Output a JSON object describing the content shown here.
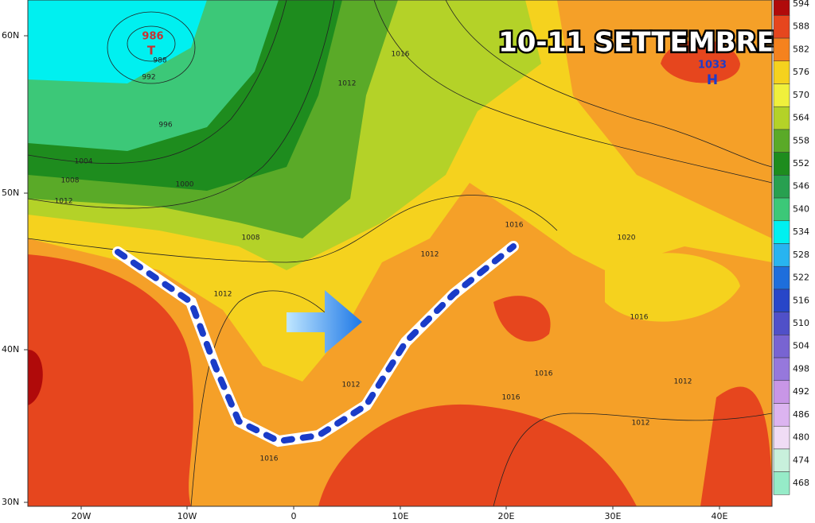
{
  "title": "10-11 SETTEMBRE",
  "legend": [
    {
      "label": 594,
      "color": "#b00a0a"
    },
    {
      "label": 588,
      "color": "#e6461e"
    },
    {
      "label": 582,
      "color": "#f5821e"
    },
    {
      "label": 576,
      "color": "#f5d21e"
    },
    {
      "label": 570,
      "color": "#f0f03c"
    },
    {
      "label": 564,
      "color": "#b4d228"
    },
    {
      "label": 558,
      "color": "#5aaa28"
    },
    {
      "label": 552,
      "color": "#1e8c1e"
    },
    {
      "label": 546,
      "color": "#28a050"
    },
    {
      "label": 540,
      "color": "#3cc878"
    },
    {
      "label": 534,
      "color": "#00f0f0"
    },
    {
      "label": 528,
      "color": "#28b4f0"
    },
    {
      "label": 522,
      "color": "#1e6edc"
    },
    {
      "label": 516,
      "color": "#2846c8"
    },
    {
      "label": 510,
      "color": "#5050c8"
    },
    {
      "label": 504,
      "color": "#7864d2"
    },
    {
      "label": 498,
      "color": "#9678dc"
    },
    {
      "label": 492,
      "color": "#c896e6"
    },
    {
      "label": 486,
      "color": "#dcb4f0"
    },
    {
      "label": 480,
      "color": "#f0dcf5"
    },
    {
      "label": 474,
      "color": "#c8f0dc"
    },
    {
      "label": 468,
      "color": "#96ebc8"
    }
  ],
  "lat_labels": [
    "60N",
    "50N",
    "40N",
    "30N"
  ],
  "lon_labels": [
    "20W",
    "10W",
    "0",
    "10E",
    "20E",
    "30E",
    "40E"
  ],
  "low": {
    "value": "986",
    "symbol": "T"
  },
  "high": {
    "value": "1033",
    "symbol": "H"
  },
  "isobar_labels": [
    "988",
    "992",
    "996",
    "1004",
    "1008",
    "1012",
    "1000",
    "1008",
    "1012",
    "1016",
    "1012",
    "1012",
    "1016",
    "1020",
    "1016",
    "1012",
    "1016",
    "1016",
    "1012",
    "1012",
    "1016"
  ]
}
